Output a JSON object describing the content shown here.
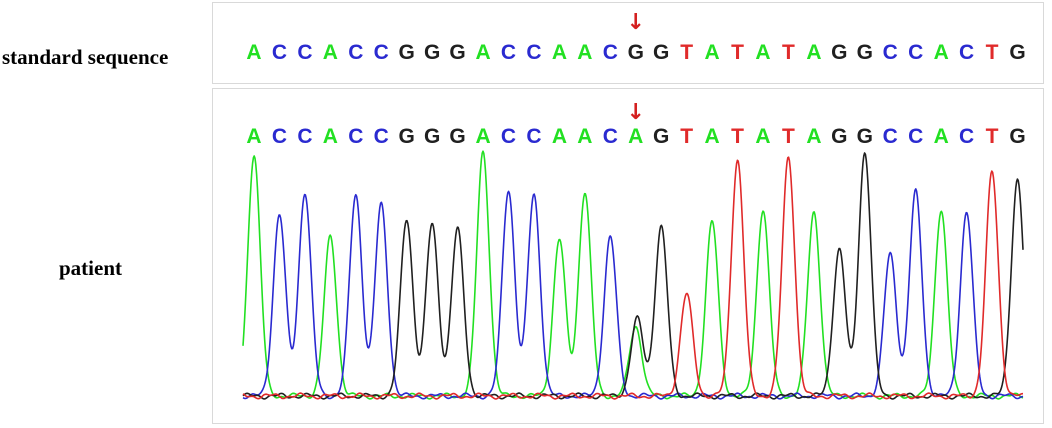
{
  "labels": {
    "standard": "standard sequence",
    "patient": "patient"
  },
  "colors": {
    "A": "#22e022",
    "C": "#2a2ad0",
    "G": "#202020",
    "T": "#e02a2a",
    "marker": "#d42020"
  },
  "standard_sequence": [
    "A",
    "C",
    "C",
    "A",
    "C",
    "C",
    "G",
    "G",
    "G",
    "A",
    "C",
    "C",
    "A",
    "A",
    "C",
    "G",
    "G",
    "T",
    "A",
    "T",
    "A",
    "T",
    "A",
    "G",
    "G",
    "C",
    "C",
    "A",
    "C",
    "T",
    "G"
  ],
  "patient_sequence": [
    "A",
    "C",
    "C",
    "A",
    "C",
    "C",
    "G",
    "G",
    "G",
    "A",
    "C",
    "C",
    "A",
    "A",
    "C",
    "A",
    "G",
    "T",
    "A",
    "T",
    "A",
    "T",
    "A",
    "G",
    "G",
    "C",
    "C",
    "A",
    "C",
    "T",
    "G"
  ],
  "marker": {
    "glyph": "↓",
    "position_index": 15
  },
  "chromatogram": {
    "peaks": [
      {
        "base": "A",
        "height": 0.97
      },
      {
        "base": "C",
        "height": 0.73
      },
      {
        "base": "C",
        "height": 0.82
      },
      {
        "base": "A",
        "height": 0.64
      },
      {
        "base": "C",
        "height": 0.81
      },
      {
        "base": "C",
        "height": 0.77
      },
      {
        "base": "G",
        "height": 0.71
      },
      {
        "base": "G",
        "height": 0.69
      },
      {
        "base": "G",
        "height": 0.67
      },
      {
        "base": "A",
        "height": 0.98
      },
      {
        "base": "C",
        "height": 0.83
      },
      {
        "base": "C",
        "height": 0.81
      },
      {
        "base": "A",
        "height": 0.63
      },
      {
        "base": "A",
        "height": 0.82
      },
      {
        "base": "C",
        "height": 0.64
      },
      {
        "base": "A",
        "height": 0.28,
        "secondary": {
          "base": "G",
          "height": 0.31
        }
      },
      {
        "base": "G",
        "height": 0.68
      },
      {
        "base": "T",
        "height": 0.41
      },
      {
        "base": "A",
        "height": 0.7
      },
      {
        "base": "T",
        "height": 0.95
      },
      {
        "base": "A",
        "height": 0.75
      },
      {
        "base": "T",
        "height": 0.96
      },
      {
        "base": "A",
        "height": 0.74
      },
      {
        "base": "G",
        "height": 0.59
      },
      {
        "base": "G",
        "height": 0.98
      },
      {
        "base": "C",
        "height": 0.57
      },
      {
        "base": "C",
        "height": 0.82
      },
      {
        "base": "A",
        "height": 0.75
      },
      {
        "base": "C",
        "height": 0.74
      },
      {
        "base": "T",
        "height": 0.9
      },
      {
        "base": "G",
        "height": 0.87
      }
    ]
  }
}
